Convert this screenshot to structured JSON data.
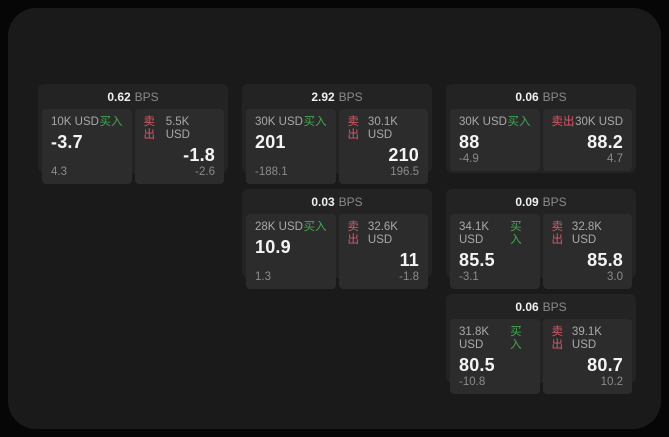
{
  "labels": {
    "bps_unit": "BPS",
    "buy": "买入",
    "sell": "卖出"
  },
  "colors": {
    "buy": "#43a853",
    "sell": "#d65a68",
    "panel_bg": "#1a1a1b",
    "card_bg": "#232324",
    "tile_bg": "#2c2c2d"
  },
  "cards": [
    {
      "bps": "0.62",
      "buy": {
        "amount": "10K USD",
        "price": "-3.7",
        "sub": "4.3"
      },
      "sell": {
        "amount": "5.5K USD",
        "price": "-1.8",
        "sub": "-2.6"
      }
    },
    {
      "bps": "2.92",
      "buy": {
        "amount": "30K USD",
        "price": "201",
        "sub": "-188.1"
      },
      "sell": {
        "amount": "30.1K USD",
        "price": "210",
        "sub": "196.5"
      }
    },
    {
      "bps": "0.06",
      "buy": {
        "amount": "30K USD",
        "price": "88",
        "sub": "-4.9"
      },
      "sell": {
        "amount": "30K USD",
        "price": "88.2",
        "sub": "4.7"
      }
    },
    {
      "bps": "0.03",
      "buy": {
        "amount": "28K USD",
        "price": "10.9",
        "sub": "1.3"
      },
      "sell": {
        "amount": "32.6K USD",
        "price": "11",
        "sub": "-1.8"
      }
    },
    {
      "bps": "0.09",
      "buy": {
        "amount": "34.1K USD",
        "price": "85.5",
        "sub": "-3.1"
      },
      "sell": {
        "amount": "32.8K USD",
        "price": "85.8",
        "sub": "3.0"
      }
    },
    {
      "bps": "0.06",
      "buy": {
        "amount": "31.8K USD",
        "price": "80.5",
        "sub": "-10.8"
      },
      "sell": {
        "amount": "39.1K USD",
        "price": "80.7",
        "sub": "10.2"
      }
    }
  ]
}
